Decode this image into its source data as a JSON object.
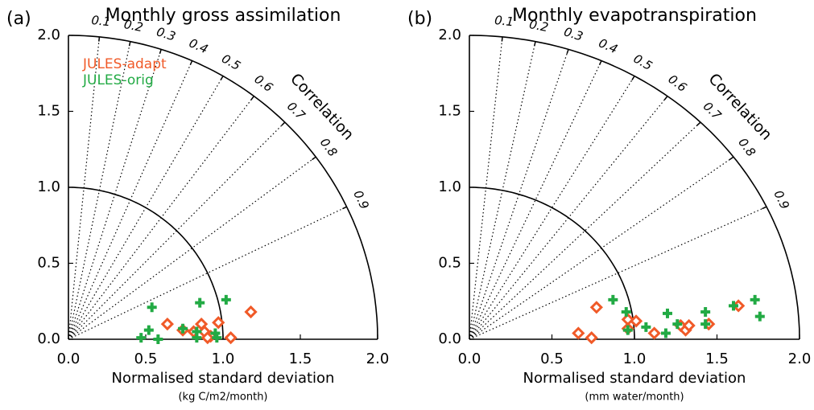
{
  "chart_data": [
    {
      "type": "taylor",
      "panel": "(a)",
      "title": "Monthly gross assimilation",
      "x_label": "Normalised standard deviation",
      "x_units": "(kg C/m2/month)",
      "correlation_label": "Correlation",
      "xlim": [
        0,
        2
      ],
      "ylim": [
        0,
        2
      ],
      "xticks": [
        {
          "value": 0,
          "label": "0.0"
        },
        {
          "value": 0.5,
          "label": "0.5"
        },
        {
          "value": 1,
          "label": "1.0"
        },
        {
          "value": 1.5,
          "label": "1.5"
        },
        {
          "value": 2,
          "label": "2.0"
        }
      ],
      "yticks": [
        {
          "value": 0,
          "label": "0.0"
        },
        {
          "value": 0.5,
          "label": "0.5"
        },
        {
          "value": 1,
          "label": "1.0"
        },
        {
          "value": 1.5,
          "label": "1.5"
        },
        {
          "value": 2,
          "label": "2.0"
        }
      ],
      "correlation_ticks": [
        0.1,
        0.2,
        0.3,
        0.4,
        0.5,
        0.6,
        0.7,
        0.8,
        0.9
      ],
      "legend": "upper left",
      "series": [
        {
          "name": "JULES-adapt",
          "color": "#f05a28",
          "marker": "diamond",
          "x": [
            0.64,
            0.74,
            0.86,
            0.88,
            0.92,
            0.97,
            1.05,
            1.18,
            0.9,
            0.81
          ],
          "values": [
            0.1,
            0.06,
            0.1,
            0.05,
            0.02,
            0.11,
            0.01,
            0.18,
            0.01,
            0.05
          ]
        },
        {
          "name": "JULES-orig",
          "color": "#22aa44",
          "marker": "plus",
          "x": [
            0.54,
            0.85,
            1.02,
            0.52,
            0.47,
            0.58,
            0.83,
            0.83,
            0.95,
            0.96,
            0.74
          ],
          "values": [
            0.21,
            0.24,
            0.26,
            0.06,
            0.01,
            0.0,
            0.05,
            0.01,
            0.04,
            0.01,
            0.07
          ]
        }
      ]
    },
    {
      "type": "taylor",
      "panel": "(b)",
      "title": "Monthly evapotranspiration",
      "x_label": "Normalised standard deviation",
      "x_units": "(mm water/month)",
      "correlation_label": "Correlation",
      "xlim": [
        0,
        2
      ],
      "ylim": [
        0,
        2
      ],
      "xticks": [
        {
          "value": 0,
          "label": "0.0"
        },
        {
          "value": 0.5,
          "label": "0.5"
        },
        {
          "value": 1,
          "label": "1.0"
        },
        {
          "value": 1.5,
          "label": "1.5"
        },
        {
          "value": 2,
          "label": "2.0"
        }
      ],
      "yticks": [
        {
          "value": 0,
          "label": "0.0"
        },
        {
          "value": 0.5,
          "label": "0.5"
        },
        {
          "value": 1,
          "label": "1.0"
        },
        {
          "value": 1.5,
          "label": "1.5"
        },
        {
          "value": 2,
          "label": "2.0"
        }
      ],
      "correlation_ticks": [
        0.1,
        0.2,
        0.3,
        0.4,
        0.5,
        0.6,
        0.7,
        0.8,
        0.9
      ],
      "series": [
        {
          "color": "#f05a28",
          "marker": "diamond",
          "x": [
            0.66,
            0.74,
            0.77,
            0.96,
            0.96,
            1.01,
            1.28,
            1.31,
            1.33,
            1.45,
            1.63,
            1.12
          ],
          "values": [
            0.04,
            0.01,
            0.21,
            0.13,
            0.07,
            0.12,
            0.09,
            0.06,
            0.09,
            0.1,
            0.22,
            0.04
          ]
        },
        {
          "color": "#22aa44",
          "marker": "plus",
          "x": [
            0.87,
            0.95,
            0.96,
            1.07,
            1.2,
            1.19,
            1.26,
            1.43,
            1.43,
            1.6,
            1.73,
            1.76
          ],
          "values": [
            0.26,
            0.18,
            0.06,
            0.08,
            0.17,
            0.04,
            0.1,
            0.18,
            0.1,
            0.22,
            0.26,
            0.15
          ]
        }
      ]
    }
  ]
}
